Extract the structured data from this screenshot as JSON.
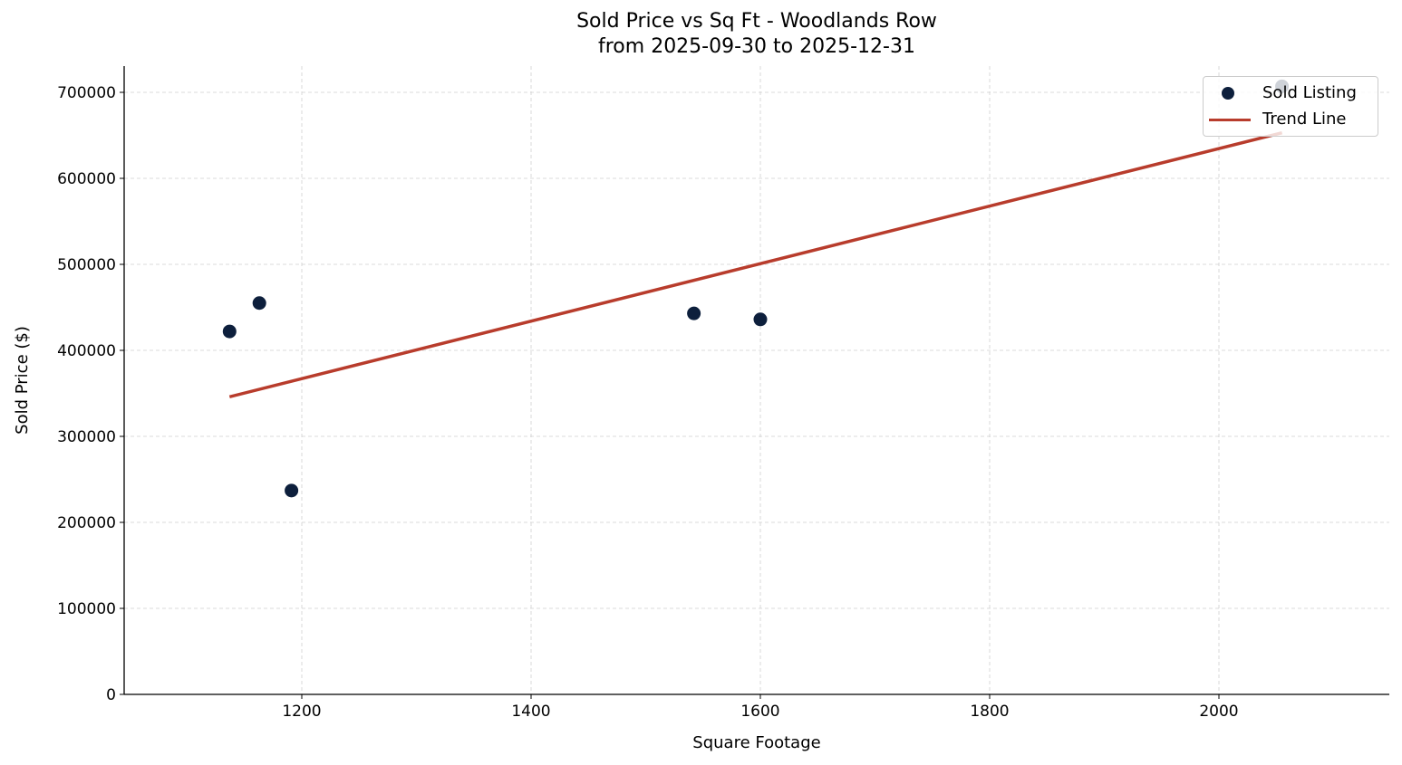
{
  "chart_data": {
    "type": "scatter",
    "title": "Sold Price vs Sq Ft - Woodlands Row",
    "subtitle": "from 2025-09-30 to 2025-12-31",
    "xlabel": "Square Footage",
    "ylabel": "Sold Price ($)",
    "xlim": [
      1045,
      2150
    ],
    "ylim": [
      0,
      730000
    ],
    "xticks": [
      1200,
      1400,
      1600,
      1800,
      2000
    ],
    "yticks": [
      0,
      100000,
      200000,
      300000,
      400000,
      500000,
      600000,
      700000
    ],
    "grid": true,
    "legend_position": "upper right",
    "series": [
      {
        "name": "Sold Listing",
        "kind": "scatter",
        "color": "#0d1f3c",
        "points": [
          {
            "x": 1137,
            "y": 422000
          },
          {
            "x": 1163,
            "y": 455000
          },
          {
            "x": 1191,
            "y": 237000
          },
          {
            "x": 1542,
            "y": 443000
          },
          {
            "x": 1600,
            "y": 436000
          },
          {
            "x": 2055,
            "y": 707000
          }
        ]
      },
      {
        "name": "Trend Line",
        "kind": "line",
        "color": "#b83c2c",
        "points": [
          {
            "x": 1137,
            "y": 346000
          },
          {
            "x": 2055,
            "y": 653000
          }
        ]
      }
    ]
  },
  "legend": {
    "items": [
      {
        "label": "Sold Listing"
      },
      {
        "label": "Trend Line"
      }
    ]
  }
}
